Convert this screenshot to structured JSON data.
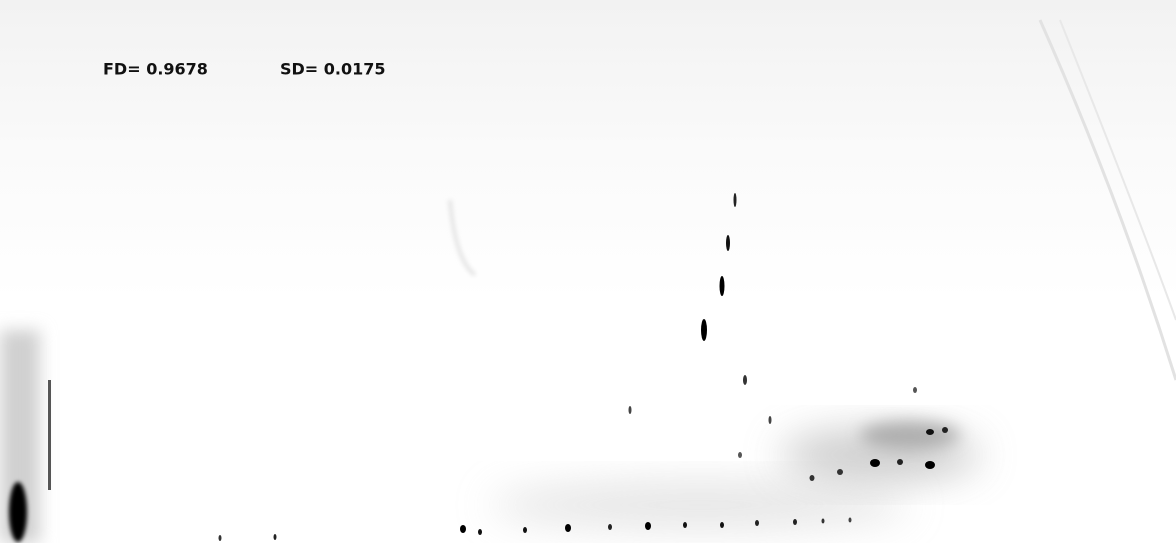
{
  "labels": {
    "fd": "FD= 0.9678",
    "sd": "SD= 0.0175"
  }
}
